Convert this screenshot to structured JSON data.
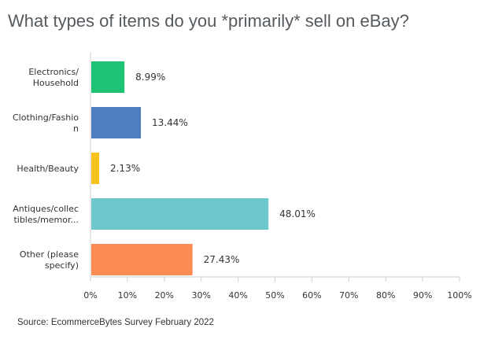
{
  "title": "What types of items do you *primarily* sell on eBay?",
  "source": "Source: EcommerceBytes Survey February 2022",
  "chart_data": {
    "type": "bar",
    "orientation": "horizontal",
    "categories": [
      [
        "Electronics/",
        "Household"
      ],
      [
        "Clothing/Fashio",
        "n"
      ],
      [
        "Health/Beauty"
      ],
      [
        "Antiques/collec",
        "tibles/memor..."
      ],
      [
        "Other (please",
        "specify)"
      ]
    ],
    "values": [
      8.99,
      13.44,
      2.13,
      48.01,
      27.43
    ],
    "value_labels": [
      "8.99%",
      "13.44%",
      "2.13%",
      "48.01%",
      "27.43%"
    ],
    "colors": [
      "#1ec274",
      "#4f7ec0",
      "#f6c21c",
      "#6cc8cc",
      "#fd8c52"
    ],
    "xlim": [
      0,
      100
    ],
    "xticks": [
      0,
      10,
      20,
      30,
      40,
      50,
      60,
      70,
      80,
      90,
      100
    ],
    "xtick_labels": [
      "0%",
      "10%",
      "20%",
      "30%",
      "40%",
      "50%",
      "60%",
      "70%",
      "80%",
      "90%",
      "100%"
    ],
    "grid": false
  }
}
